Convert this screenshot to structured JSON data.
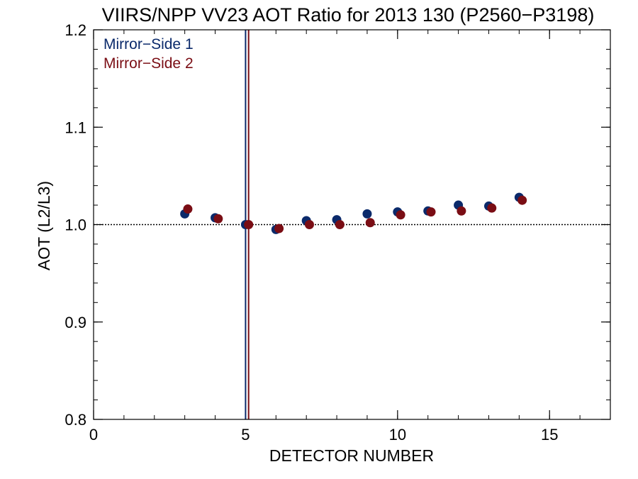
{
  "chart_data": {
    "type": "scatter",
    "title": "VIIRS/NPP VV23 AOT Ratio for 2013 130 (P2560−P3198)",
    "xlabel": "DETECTOR NUMBER",
    "ylabel": "AOT (L2/L3)",
    "xlim": [
      0,
      17
    ],
    "ylim": [
      0.8,
      1.2
    ],
    "xticks": [
      0,
      5,
      10,
      15
    ],
    "xtick_labels": [
      "0",
      "5",
      "10",
      "15"
    ],
    "yticks": [
      0.8,
      0.9,
      1.0,
      1.1,
      1.2
    ],
    "ytick_labels": [
      "0.8",
      "0.9",
      "1.0",
      "1.1",
      "1.2"
    ],
    "x_minor_step": 1,
    "y_minor_step": 0.02,
    "grid": false,
    "reference_hline": 1.0,
    "legend_position": "top-left",
    "series": [
      {
        "name": "Mirror−Side 1",
        "color": "#0b2a6b",
        "x": [
          3,
          4,
          5,
          6,
          7,
          8,
          9,
          10,
          11,
          12,
          13,
          14
        ],
        "y": [
          1.011,
          1.007,
          1.0,
          0.995,
          1.004,
          1.005,
          1.011,
          1.013,
          1.014,
          1.02,
          1.019,
          1.028
        ],
        "vline": 5.0
      },
      {
        "name": "Mirror−Side 2",
        "color": "#7a0d14",
        "x": [
          3.1,
          4.1,
          5.1,
          6.1,
          7.1,
          8.1,
          9.1,
          10.1,
          11.1,
          12.1,
          13.1,
          14.1
        ],
        "y": [
          1.016,
          1.006,
          1.0,
          0.996,
          1.0,
          1.0,
          1.002,
          1.01,
          1.013,
          1.014,
          1.017,
          1.025
        ],
        "vline": 5.1
      }
    ]
  }
}
